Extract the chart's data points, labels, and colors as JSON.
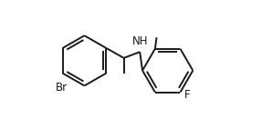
{
  "background_color": "#ffffff",
  "bond_color": "#1a1a1a",
  "text_color": "#1a1a1a",
  "bond_width": 1.4,
  "font_size": 8.5,
  "figsize": [
    2.87,
    1.52
  ],
  "dpi": 100,
  "xlim": [
    0.0,
    1.0
  ],
  "ylim": [
    0.05,
    0.95
  ]
}
